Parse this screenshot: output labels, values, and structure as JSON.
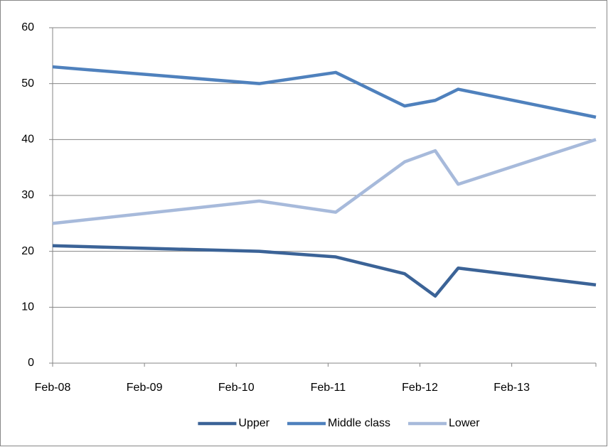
{
  "chart_data": {
    "type": "line",
    "x": [
      "2008-02",
      "2010-05",
      "2011-03",
      "2011-12",
      "2012-04",
      "2012-07",
      "2014-01"
    ],
    "series": [
      {
        "name": "Upper",
        "color": "#3b6397",
        "values": [
          21,
          20,
          19,
          16,
          12,
          17,
          14
        ]
      },
      {
        "name": "Middle class",
        "color": "#4f81bd",
        "values": [
          53,
          50,
          52,
          46,
          47,
          49,
          44
        ]
      },
      {
        "name": "Lower",
        "color": "#a7badb",
        "values": [
          25,
          29,
          27,
          36,
          38,
          32,
          40
        ]
      }
    ],
    "xlim": [
      "2008-02",
      "2014-01"
    ],
    "xticks": [
      {
        "value": "2008-02",
        "label": "Feb-08"
      },
      {
        "value": "2009-02",
        "label": "Feb-09"
      },
      {
        "value": "2010-02",
        "label": "Feb-10"
      },
      {
        "value": "2011-02",
        "label": "Feb-11"
      },
      {
        "value": "2012-02",
        "label": "Feb-12"
      },
      {
        "value": "2013-02",
        "label": "Feb-13"
      }
    ],
    "ylim": [
      0,
      60
    ],
    "yticks": [
      0,
      10,
      20,
      30,
      40,
      50,
      60
    ],
    "grid": true,
    "legend": "bottom"
  }
}
